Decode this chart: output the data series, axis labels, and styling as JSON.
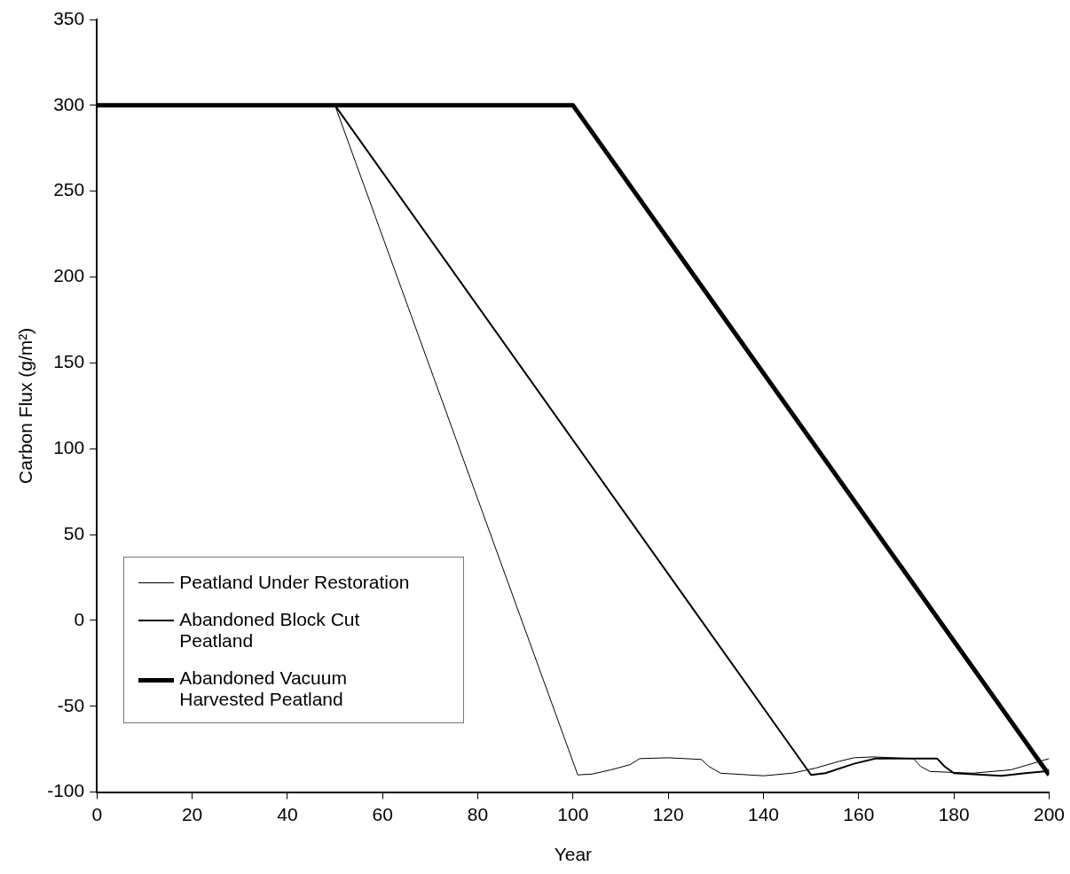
{
  "chart_data": {
    "type": "line",
    "xlabel": "Year",
    "ylabel": "Carbon Flux (g/m²)",
    "xlim": [
      0,
      200
    ],
    "xticks": [
      0,
      20,
      40,
      60,
      80,
      100,
      120,
      140,
      160,
      180,
      200
    ],
    "ylim": [
      -100,
      350
    ],
    "yticks": [
      -100,
      -50,
      0,
      50,
      100,
      150,
      200,
      250,
      300,
      350
    ],
    "grid": false,
    "legend": "bottom left",
    "marker": "none",
    "line_style": "solid",
    "series": [
      {
        "name": "Peatland Under Restoration",
        "color": "#000000",
        "x": [
          0,
          50,
          101,
          104,
          108,
          112,
          114,
          120,
          127,
          128.5,
          131,
          140,
          146,
          151,
          156,
          159,
          163,
          171.5,
          173,
          175,
          184,
          192,
          200
        ],
        "values": [
          300,
          300,
          -90,
          -89.5,
          -87,
          -84,
          -80.5,
          -80,
          -81,
          -85,
          -89,
          -90.5,
          -89,
          -86,
          -82,
          -80,
          -79.5,
          -80.5,
          -85,
          -88,
          -89,
          -87,
          -80.5
        ]
      },
      {
        "name": "Abandoned Block Cut Peatland",
        "color": "#000000",
        "x": [
          0,
          50,
          150,
          153,
          159,
          163.5,
          176.5,
          178,
          180,
          190,
          195,
          199,
          200
        ],
        "values": [
          300,
          300,
          -90,
          -89,
          -83.5,
          -80.5,
          -80.5,
          -85,
          -89,
          -90.5,
          -89,
          -88,
          -87
        ]
      },
      {
        "name": "Abandoned Vacuum Harvested Peatland",
        "color": "#000000",
        "x": [
          0,
          100,
          200
        ],
        "values": [
          300,
          300,
          -90
        ]
      }
    ]
  }
}
